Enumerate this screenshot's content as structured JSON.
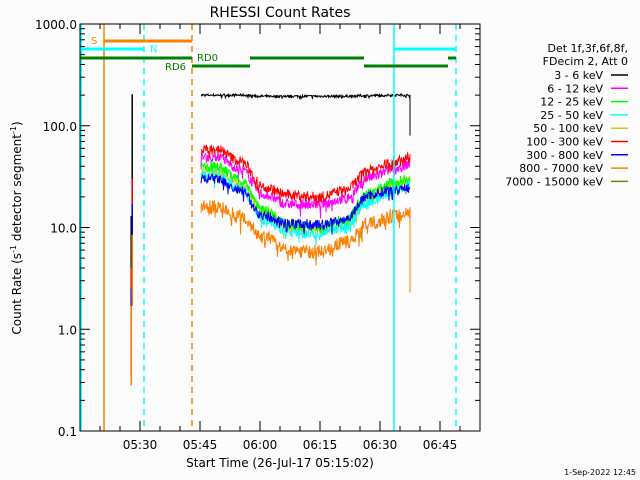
{
  "chart_data": {
    "type": "line",
    "title": "RHESSI Count Rates",
    "xlabel": "Start Time (26-Jul-17 05:15:02)",
    "ylabel": "Count Rate (s",
    "ylabel_sup1": "-1",
    "ylabel_mid": " detector segment",
    "ylabel_sup2": "-1",
    "ylabel_end": ")",
    "yscale": "log",
    "ylim": [
      0.1,
      1000
    ],
    "xlim_minutes_after_0515": [
      0,
      100
    ],
    "x_ticks": [
      {
        "label": "05:30",
        "minutes": 15
      },
      {
        "label": "05:45",
        "minutes": 30
      },
      {
        "label": "06:00",
        "minutes": 45
      },
      {
        "label": "06:15",
        "minutes": 60
      },
      {
        "label": "06:30",
        "minutes": 75
      },
      {
        "label": "06:45",
        "minutes": 90
      }
    ],
    "y_ticks": [
      {
        "label": "0.1",
        "value": 0.1
      },
      {
        "label": "1.0",
        "value": 1
      },
      {
        "label": "10.0",
        "value": 10
      },
      {
        "label": "100.0",
        "value": 100
      },
      {
        "label": "1000.0",
        "value": 1000
      }
    ],
    "legend": {
      "placement": "right",
      "header1": "Det 1f,3f,6f,8f,",
      "header2": "FDecim 2, Att 0"
    },
    "sample_minutes": [
      30.25,
      34,
      40,
      46,
      52,
      60,
      66,
      72.5,
      79,
      82.5
    ],
    "series": [
      {
        "name": "3 - 6 keV",
        "color": "#000000",
        "values": [
          200,
          200,
          200,
          195,
          195,
          195,
          195,
          198,
          200,
          200
        ],
        "end_drop": 80,
        "spike": [
          [
            1.7,
            204
          ],
          [
            0.35,
            13
          ]
        ]
      },
      {
        "name": "6 - 12 keV",
        "color": "#ff00ff",
        "values": [
          49,
          50,
          38,
          21,
          17,
          17,
          19,
          31,
          38,
          42
        ]
      },
      {
        "name": "12 - 25 keV",
        "color": "#00ff00",
        "values": [
          39,
          40,
          30,
          15,
          10.5,
          10,
          12,
          22,
          28,
          31
        ]
      },
      {
        "name": "25 - 50 keV",
        "color": "#00ffff",
        "values": [
          33,
          33,
          24,
          12,
          9,
          8.5,
          10,
          18,
          23,
          26
        ]
      },
      {
        "name": "50 - 100 keV",
        "color": "#cccc00",
        "values": [
          35,
          36,
          27,
          14,
          10,
          9.5,
          11,
          20,
          26,
          29
        ]
      },
      {
        "name": "100 - 300 keV",
        "color": "#ff0000",
        "values": [
          58,
          60,
          45,
          25,
          21,
          20,
          23,
          37,
          45,
          49
        ],
        "spike": [
          [
            17,
            30
          ],
          [
            2.5,
            4
          ]
        ]
      },
      {
        "name": "300 - 800 keV",
        "color": "#0000ff",
        "values": [
          30,
          30,
          23,
          13,
          11,
          10.7,
          12,
          21,
          24,
          25
        ],
        "spike": [
          [
            8.5,
            17
          ],
          [
            1.7,
            2.5
          ]
        ]
      },
      {
        "name": "800 - 7000 keV",
        "color": "#ff8000",
        "values": [
          16,
          16,
          13,
          8,
          6,
          5.8,
          7,
          11,
          13,
          14
        ],
        "end_drop": 2.3,
        "spike": [
          [
            1.7,
            8.5
          ],
          [
            0.28,
            1.7
          ]
        ]
      },
      {
        "name": "7000 - 15000 keV",
        "color": "#808000",
        "values": []
      }
    ],
    "flags": [
      {
        "name": "S",
        "color": "#ff8000",
        "segments": [
          [
            5.95,
            28
          ]
        ]
      },
      {
        "name": "N",
        "color": "#00ffff",
        "segments": [
          [
            0,
            16
          ],
          [
            78.5,
            94
          ]
        ]
      },
      {
        "name": "RD0",
        "color": "#008000",
        "segments": [
          [
            0,
            28
          ],
          [
            42.5,
            71
          ],
          [
            92,
            94
          ]
        ]
      },
      {
        "name": "RD6",
        "color": "#008000",
        "segments": [
          [
            28,
            42.5
          ],
          [
            71,
            92
          ]
        ]
      }
    ],
    "vlines": [
      {
        "minutes": 0,
        "color": "#00ffff",
        "dashed": false
      },
      {
        "minutes": 6,
        "color": "#ff8000",
        "dashed": false
      },
      {
        "minutes": 16,
        "color": "#00ffff",
        "dashed": true
      },
      {
        "minutes": 28,
        "color": "#ff8000",
        "dashed": true
      },
      {
        "minutes": 78.5,
        "color": "#00ffff",
        "dashed": false
      },
      {
        "minutes": 94,
        "color": "#00ffff",
        "dashed": true
      }
    ]
  },
  "footer": {
    "timestamp": "1-Sep-2022 12:45"
  }
}
